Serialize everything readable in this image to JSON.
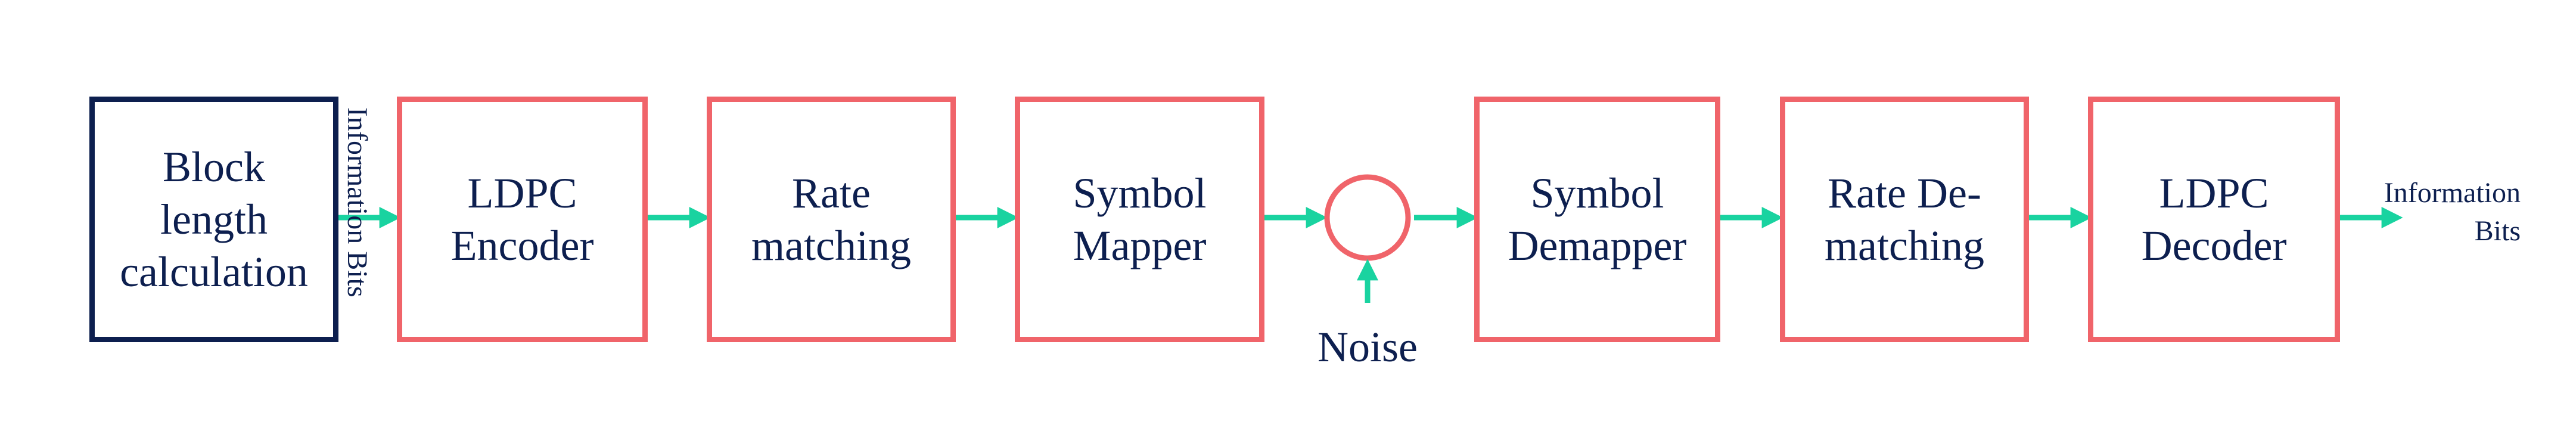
{
  "blocks": {
    "block_length": [
      "Block",
      "length",
      "calculation"
    ],
    "ldpc_encoder": [
      "LDPC",
      "Encoder"
    ],
    "rate_matching": [
      "Rate",
      "matching"
    ],
    "symbol_mapper": [
      "Symbol",
      "Mapper"
    ],
    "symbol_demapper": [
      "Symbol",
      "Demapper"
    ],
    "rate_dematching": [
      "Rate De-",
      "matching"
    ],
    "ldpc_decoder": [
      "LDPC",
      "Decoder"
    ]
  },
  "labels": {
    "info_bits_vertical": "Information Bits",
    "noise": "Noise",
    "info_bits_out_line1": "Information",
    "info_bits_out_line2": "Bits"
  },
  "colors": {
    "block_border": "#f0646a",
    "first_block_border": "#0d1f4f",
    "arrow": "#19d3a0",
    "text": "#0d1f4f"
  }
}
